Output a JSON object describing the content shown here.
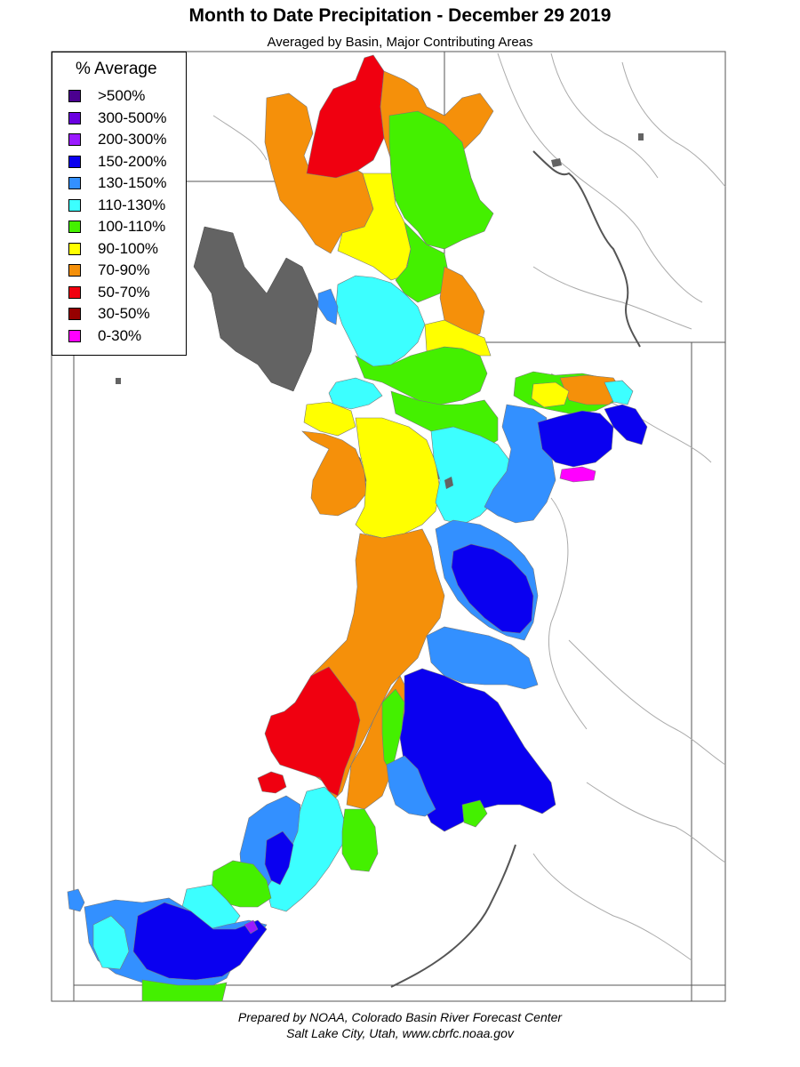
{
  "title": "Month to Date Precipitation - December 29 2019",
  "subtitle": "Averaged by Basin, Major Contributing Areas",
  "legend": {
    "title": "% Average",
    "items": [
      {
        "label": ">500%",
        "color": "#4b0090"
      },
      {
        "label": "300-500%",
        "color": "#6a00e0"
      },
      {
        "label": "200-300%",
        "color": "#9a1aff"
      },
      {
        "label": "150-200%",
        "color": "#0a00f0"
      },
      {
        "label": "130-150%",
        "color": "#3390ff"
      },
      {
        "label": "110-130%",
        "color": "#3cffff"
      },
      {
        "label": "100-110%",
        "color": "#44f000"
      },
      {
        "label": "90-100%",
        "color": "#ffff00"
      },
      {
        "label": "70-90%",
        "color": "#f5900a"
      },
      {
        "label": "50-70%",
        "color": "#f00010"
      },
      {
        "label": "30-50%",
        "color": "#960000"
      },
      {
        "label": "0-30%",
        "color": "#ff00ff"
      }
    ]
  },
  "colors": {
    "lake": "#636363",
    "boundary": "#555555",
    "river": "#aaaaaa"
  },
  "credit": {
    "line1": "Prepared by NOAA, Colorado Basin River Forecast Center",
    "line2": "Salt Lake City, Utah, www.cbrfc.noaa.gov"
  }
}
